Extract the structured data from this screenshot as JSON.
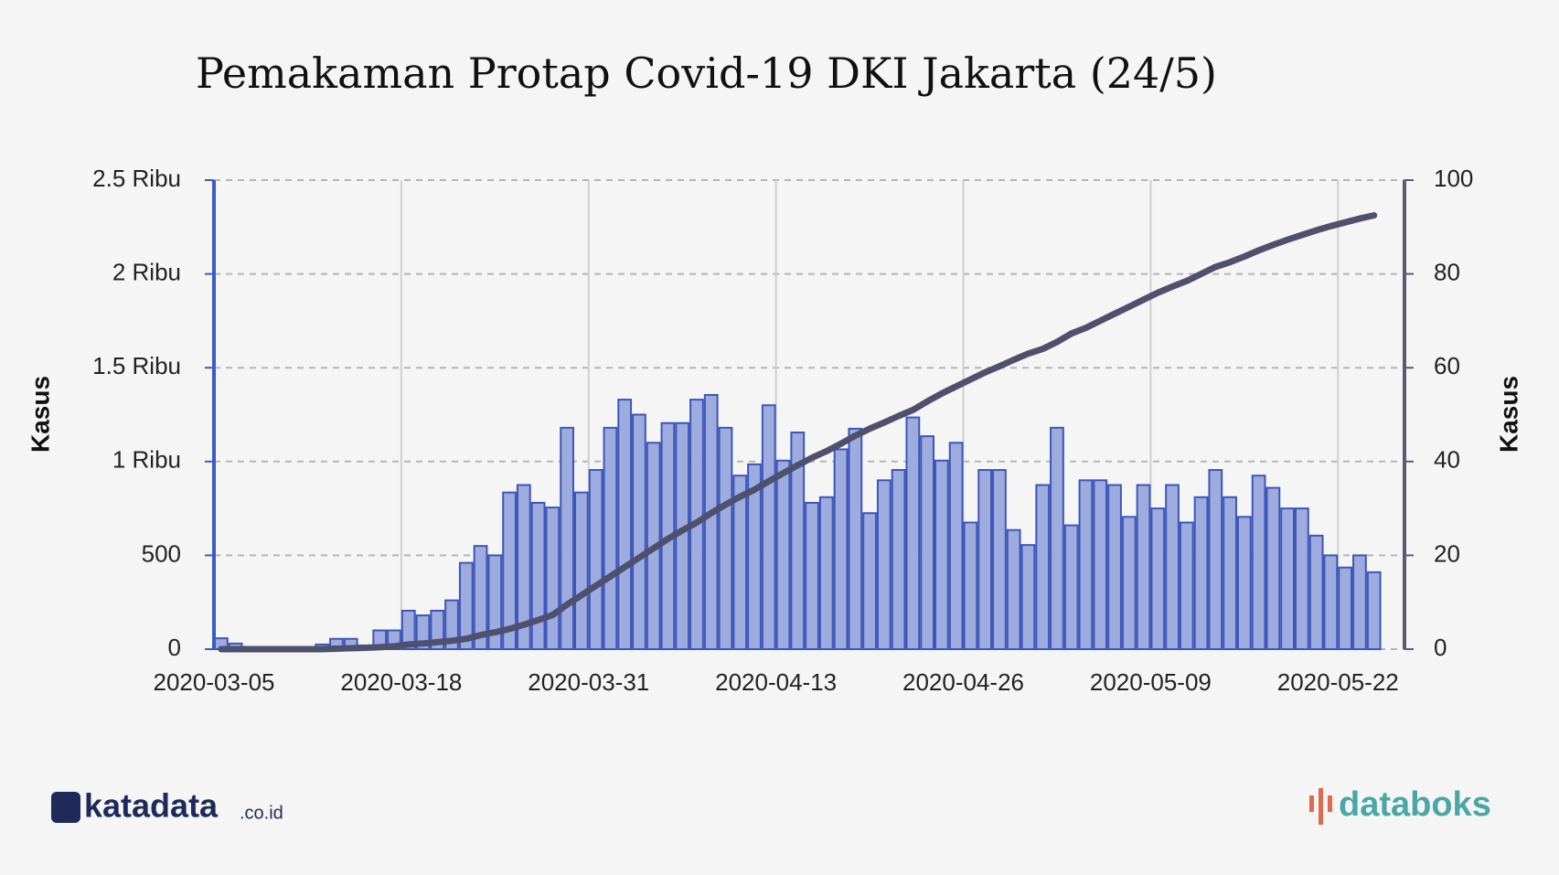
{
  "chart_data": {
    "type": "bar-line",
    "title": "Pemakaman Protap Covid-19 DKI Jakarta (24/5)",
    "ylabel": "Kasus",
    "y2label": "Kasus",
    "x": [
      "2020-03-05",
      "2020-03-06",
      "2020-03-07",
      "2020-03-08",
      "2020-03-09",
      "2020-03-10",
      "2020-03-11",
      "2020-03-12",
      "2020-03-13",
      "2020-03-14",
      "2020-03-15",
      "2020-03-16",
      "2020-03-17",
      "2020-03-18",
      "2020-03-19",
      "2020-03-20",
      "2020-03-21",
      "2020-03-22",
      "2020-03-23",
      "2020-03-24",
      "2020-03-25",
      "2020-03-26",
      "2020-03-27",
      "2020-03-28",
      "2020-03-29",
      "2020-03-30",
      "2020-03-31",
      "2020-04-01",
      "2020-04-02",
      "2020-04-03",
      "2020-04-04",
      "2020-04-05",
      "2020-04-06",
      "2020-04-07",
      "2020-04-08",
      "2020-04-09",
      "2020-04-10",
      "2020-04-11",
      "2020-04-12",
      "2020-04-13",
      "2020-04-14",
      "2020-04-15",
      "2020-04-16",
      "2020-04-17",
      "2020-04-18",
      "2020-04-19",
      "2020-04-20",
      "2020-04-21",
      "2020-04-22",
      "2020-04-23",
      "2020-04-24",
      "2020-04-25",
      "2020-04-26",
      "2020-04-27",
      "2020-04-28",
      "2020-04-29",
      "2020-04-30",
      "2020-05-01",
      "2020-05-02",
      "2020-05-03",
      "2020-05-04",
      "2020-05-05",
      "2020-05-06",
      "2020-05-07",
      "2020-05-08",
      "2020-05-09",
      "2020-05-10",
      "2020-05-11",
      "2020-05-12",
      "2020-05-13",
      "2020-05-14",
      "2020-05-15",
      "2020-05-16",
      "2020-05-17",
      "2020-05-18",
      "2020-05-19",
      "2020-05-20",
      "2020-05-21",
      "2020-05-22",
      "2020-05-23",
      "2020-05-24"
    ],
    "xticks": [
      "2020-03-05",
      "2020-03-18",
      "2020-03-31",
      "2020-04-13",
      "2020-04-26",
      "2020-05-09",
      "2020-05-22"
    ],
    "series": [
      {
        "color": "#9eabdf",
        "values": [
          58,
          30,
          10,
          5,
          5,
          5,
          10,
          25,
          55,
          55,
          20,
          100,
          100,
          205,
          180,
          205,
          260,
          460,
          550,
          500,
          835,
          875,
          780,
          755,
          1180,
          835,
          955,
          1180,
          1330,
          1250,
          1100,
          1205,
          1205,
          1330,
          1355,
          1180,
          925,
          985,
          1300,
          1005,
          1155,
          780,
          810,
          1065,
          1175,
          725,
          900,
          955,
          1235,
          1135,
          1005,
          1100,
          675,
          955,
          955,
          635,
          555,
          875,
          1180,
          660,
          900,
          900,
          875,
          705,
          875,
          750,
          875,
          675,
          810,
          955,
          810,
          705,
          925,
          860,
          750,
          750,
          605,
          500,
          435,
          500,
          410
        ]
      },
      {
        "color": "#4f4f6e",
        "axis": "y2",
        "values": [
          0,
          0,
          0,
          0,
          0,
          0,
          0,
          0,
          0.1,
          0.2,
          0.3,
          0.4,
          0.6,
          1,
          1.2,
          1.5,
          1.8,
          2.2,
          3,
          3.6,
          4.3,
          5.2,
          6.2,
          7.3,
          9.5,
          11.5,
          13.5,
          15.5,
          17.5,
          19.5,
          21.5,
          23.5,
          25.3,
          27,
          29,
          30.8,
          32.5,
          34,
          35.8,
          37.5,
          39.2,
          40.8,
          42.2,
          43.8,
          45.5,
          47,
          48.3,
          49.7,
          51,
          52.8,
          54.5,
          56,
          57.5,
          59,
          60.3,
          61.7,
          63,
          64,
          65.5,
          67.3,
          68.5,
          70,
          71.5,
          73,
          74.5,
          76,
          77.3,
          78.5,
          80,
          81.5,
          82.5,
          83.7,
          85,
          86.2,
          87.3,
          88.3,
          89.3,
          90.2,
          91,
          91.8,
          92.5
        ]
      }
    ],
    "ylim": [
      0,
      2500
    ],
    "yticks": [
      0,
      500,
      {
        "value": 1000,
        "label": "1 Ribu"
      },
      {
        "value": 1500,
        "label": "1.5 Ribu"
      },
      {
        "value": 2000,
        "label": "2 Ribu"
      },
      {
        "value": 2500,
        "label": "2.5 Ribu"
      }
    ],
    "y2lim": [
      0,
      100
    ],
    "y2ticks": [
      0,
      20,
      40,
      60,
      80,
      100
    ],
    "grid": true
  },
  "logos": {
    "left": "katadata",
    "left_suffix": ".co.id",
    "right": "databoks"
  }
}
